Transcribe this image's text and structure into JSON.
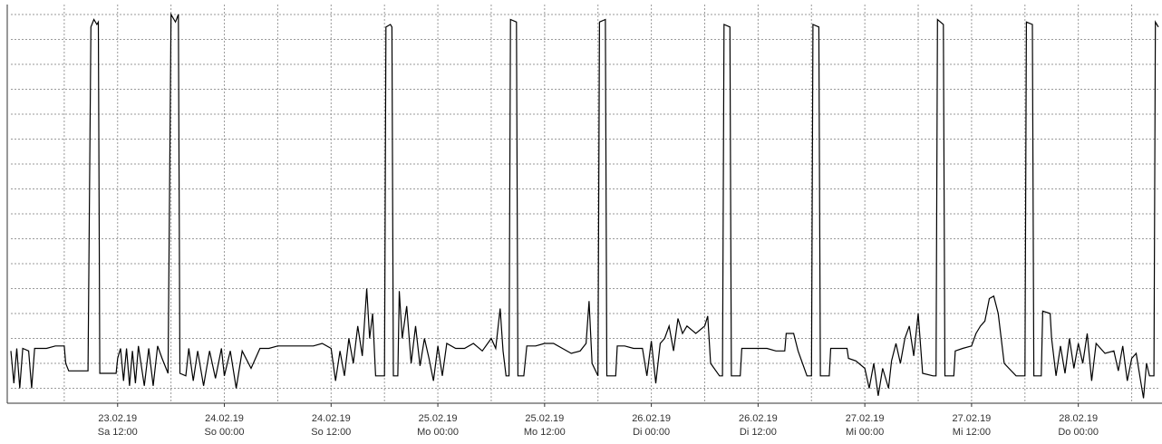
{
  "chart_data": {
    "type": "line",
    "xlim": [
      "2019-02-23T00:00",
      "2019-02-28T09:00"
    ],
    "xticks": [
      {
        "value": "2019-02-23T12:00",
        "label": [
          "23.02.19",
          "Sa 12:00"
        ]
      },
      {
        "value": "2019-02-24T00:00",
        "label": [
          "24.02.19",
          "So 00:00"
        ]
      },
      {
        "value": "2019-02-24T12:00",
        "label": [
          "24.02.19",
          "So 12:00"
        ]
      },
      {
        "value": "2019-02-25T00:00",
        "label": [
          "25.02.19",
          "Mo 00:00"
        ]
      },
      {
        "value": "2019-02-25T12:00",
        "label": [
          "25.02.19",
          "Mo 12:00"
        ]
      },
      {
        "value": "2019-02-26T00:00",
        "label": [
          "26.02.19",
          "Di 00:00"
        ]
      },
      {
        "value": "2019-02-26T12:00",
        "label": [
          "26.02.19",
          "Di 12:00"
        ]
      },
      {
        "value": "2019-02-27T00:00",
        "label": [
          "27.02.19",
          "Mi 00:00"
        ]
      },
      {
        "value": "2019-02-27T12:00",
        "label": [
          "27.02.19",
          "Mi 12:00"
        ]
      },
      {
        "value": "2019-02-28T00:00",
        "label": [
          "28.02.19",
          "Do 00:00"
        ]
      }
    ],
    "ylim": [
      -0.6,
      15.4
    ],
    "yticks": [
      0,
      1,
      2,
      3,
      4,
      5,
      6,
      7,
      8,
      9,
      10,
      11,
      12,
      13,
      14,
      15
    ],
    "grid": true,
    "x": [
      "2019-02-23T00:00",
      "2019-02-23T00:20",
      "2019-02-23T00:40",
      "2019-02-23T01:00",
      "2019-02-23T01:20",
      "2019-02-23T02:00",
      "2019-02-23T02:20",
      "2019-02-23T02:40",
      "2019-02-23T04:00",
      "2019-02-23T05:00",
      "2019-02-23T06:00",
      "2019-02-23T06:10",
      "2019-02-23T06:30",
      "2019-02-23T08:40",
      "2019-02-23T09:00",
      "2019-02-23T09:20",
      "2019-02-23T09:40",
      "2019-02-23T09:50",
      "2019-02-23T10:00",
      "2019-02-23T11:50",
      "2019-02-23T12:00",
      "2019-02-23T12:20",
      "2019-02-23T12:40",
      "2019-02-23T13:00",
      "2019-02-23T13:20",
      "2019-02-23T13:40",
      "2019-02-23T14:00",
      "2019-02-23T14:20",
      "2019-02-23T15:00",
      "2019-02-23T15:30",
      "2019-02-23T16:00",
      "2019-02-23T16:30",
      "2019-02-23T17:00",
      "2019-02-23T17:40",
      "2019-02-23T18:00",
      "2019-02-23T18:30",
      "2019-02-23T18:50",
      "2019-02-23T19:00",
      "2019-02-23T19:40",
      "2019-02-23T20:00",
      "2019-02-23T20:30",
      "2019-02-23T21:00",
      "2019-02-23T21:40",
      "2019-02-23T22:20",
      "2019-02-23T23:00",
      "2019-02-23T23:40",
      "2019-02-24T00:00",
      "2019-02-24T00:40",
      "2019-02-24T01:20",
      "2019-02-24T02:00",
      "2019-02-24T03:00",
      "2019-02-24T04:00",
      "2019-02-24T05:00",
      "2019-02-24T06:00",
      "2019-02-24T08:00",
      "2019-02-24T10:00",
      "2019-02-24T11:00",
      "2019-02-24T12:00",
      "2019-02-24T12:30",
      "2019-02-24T13:00",
      "2019-02-24T13:30",
      "2019-02-24T14:00",
      "2019-02-24T14:30",
      "2019-02-24T15:00",
      "2019-02-24T15:30",
      "2019-02-24T16:00",
      "2019-02-24T16:20",
      "2019-02-24T16:40",
      "2019-02-24T17:00",
      "2019-02-24T18:00",
      "2019-02-24T18:10",
      "2019-02-24T18:40",
      "2019-02-24T18:50",
      "2019-02-24T19:00",
      "2019-02-24T19:30",
      "2019-02-24T19:40",
      "2019-02-24T20:00",
      "2019-02-24T20:30",
      "2019-02-24T21:00",
      "2019-02-24T21:30",
      "2019-02-24T22:00",
      "2019-02-24T22:30",
      "2019-02-24T23:00",
      "2019-02-24T23:30",
      "2019-02-25T00:00",
      "2019-02-25T00:30",
      "2019-02-25T01:00",
      "2019-02-25T02:00",
      "2019-02-25T03:00",
      "2019-02-25T04:00",
      "2019-02-25T05:00",
      "2019-02-25T06:00",
      "2019-02-25T06:30",
      "2019-02-25T07:00",
      "2019-02-25T07:20",
      "2019-02-25T07:40",
      "2019-02-25T08:00",
      "2019-02-25T08:10",
      "2019-02-25T08:50",
      "2019-02-25T09:00",
      "2019-02-25T09:40",
      "2019-02-25T10:00",
      "2019-02-25T11:00",
      "2019-02-25T12:00",
      "2019-02-25T13:00",
      "2019-02-25T14:00",
      "2019-02-25T15:00",
      "2019-02-25T16:00",
      "2019-02-25T16:40",
      "2019-02-25T17:00",
      "2019-02-25T17:20",
      "2019-02-25T18:00",
      "2019-02-25T18:10",
      "2019-02-25T18:50",
      "2019-02-25T19:00",
      "2019-02-25T20:00",
      "2019-02-25T20:10",
      "2019-02-25T21:00",
      "2019-02-25T22:00",
      "2019-02-25T23:00",
      "2019-02-25T23:30",
      "2019-02-26T00:00",
      "2019-02-26T00:30",
      "2019-02-26T01:00",
      "2019-02-26T01:30",
      "2019-02-26T02:00",
      "2019-02-26T02:30",
      "2019-02-26T03:00",
      "2019-02-26T03:30",
      "2019-02-26T04:00",
      "2019-02-26T05:00",
      "2019-02-26T06:00",
      "2019-02-26T06:20",
      "2019-02-26T06:40",
      "2019-02-26T07:40",
      "2019-02-26T08:00",
      "2019-02-26T08:10",
      "2019-02-26T08:50",
      "2019-02-26T09:00",
      "2019-02-26T10:00",
      "2019-02-26T10:10",
      "2019-02-26T12:00",
      "2019-02-26T13:00",
      "2019-02-26T14:00",
      "2019-02-26T15:00",
      "2019-02-26T15:10",
      "2019-02-26T16:00",
      "2019-02-26T16:30",
      "2019-02-26T17:30",
      "2019-02-26T18:00",
      "2019-02-26T18:10",
      "2019-02-26T18:50",
      "2019-02-26T19:00",
      "2019-02-26T20:00",
      "2019-02-26T20:10",
      "2019-02-26T22:00",
      "2019-02-26T22:10",
      "2019-02-26T23:00",
      "2019-02-27T00:00",
      "2019-02-27T00:30",
      "2019-02-27T01:00",
      "2019-02-27T01:30",
      "2019-02-27T02:00",
      "2019-02-27T02:40",
      "2019-02-27T03:00",
      "2019-02-27T03:30",
      "2019-02-27T04:00",
      "2019-02-27T04:30",
      "2019-02-27T05:00",
      "2019-02-27T05:30",
      "2019-02-27T06:00",
      "2019-02-27T06:30",
      "2019-02-27T07:40",
      "2019-02-27T08:00",
      "2019-02-27T08:10",
      "2019-02-27T08:50",
      "2019-02-27T09:00",
      "2019-02-27T10:00",
      "2019-02-27T10:10",
      "2019-02-27T11:00",
      "2019-02-27T12:00",
      "2019-02-27T12:30",
      "2019-02-27T13:00",
      "2019-02-27T13:30",
      "2019-02-27T14:00",
      "2019-02-27T14:30",
      "2019-02-27T15:00",
      "2019-02-27T15:20",
      "2019-02-27T15:40",
      "2019-02-27T17:00",
      "2019-02-27T18:00",
      "2019-02-27T18:10",
      "2019-02-27T18:50",
      "2019-02-27T19:00",
      "2019-02-27T19:50",
      "2019-02-27T20:00",
      "2019-02-27T20:50",
      "2019-02-27T21:00",
      "2019-02-27T21:30",
      "2019-02-27T22:00",
      "2019-02-27T22:30",
      "2019-02-27T23:00",
      "2019-02-27T23:30",
      "2019-02-28T00:00",
      "2019-02-28T00:30",
      "2019-02-28T01:00",
      "2019-02-28T01:30",
      "2019-02-28T02:00",
      "2019-02-28T03:00",
      "2019-02-28T04:00",
      "2019-02-28T04:30",
      "2019-02-28T05:00",
      "2019-02-28T05:30",
      "2019-02-28T06:00",
      "2019-02-28T06:30",
      "2019-02-28T07:00",
      "2019-02-28T07:20",
      "2019-02-28T07:40",
      "2019-02-28T08:00",
      "2019-02-28T08:30",
      "2019-02-28T08:40",
      "2019-02-28T09:00"
    ],
    "series": [
      {
        "color": "#000000",
        "values": [
          1.5,
          0.2,
          1.6,
          0.0,
          1.6,
          1.5,
          0.0,
          1.6,
          1.6,
          1.7,
          1.7,
          1.0,
          0.7,
          0.7,
          14.5,
          14.8,
          14.6,
          14.7,
          0.6,
          0.6,
          1.2,
          1.6,
          0.3,
          1.6,
          0.1,
          1.5,
          0.2,
          1.7,
          0.1,
          1.6,
          0.1,
          1.7,
          1.2,
          0.6,
          15.0,
          14.7,
          15.0,
          0.6,
          0.5,
          1.6,
          0.3,
          1.5,
          0.1,
          1.5,
          0.4,
          1.6,
          0.5,
          1.5,
          0.0,
          1.5,
          0.8,
          1.6,
          1.6,
          1.7,
          1.7,
          1.7,
          1.8,
          1.6,
          0.3,
          1.5,
          0.5,
          2.0,
          1.0,
          2.5,
          1.3,
          4.0,
          2.0,
          3.0,
          0.5,
          0.5,
          14.5,
          14.6,
          14.5,
          0.5,
          0.5,
          3.9,
          2.0,
          3.3,
          1.0,
          2.5,
          0.9,
          2.0,
          1.2,
          0.3,
          1.7,
          0.5,
          1.8,
          1.6,
          1.6,
          1.8,
          1.5,
          2.0,
          1.6,
          3.2,
          1.5,
          0.5,
          0.5,
          14.8,
          14.7,
          0.5,
          0.5,
          1.7,
          1.7,
          1.8,
          1.8,
          1.6,
          1.4,
          1.5,
          1.8,
          3.5,
          1.0,
          0.5,
          14.7,
          14.8,
          0.5,
          0.5,
          1.7,
          1.7,
          1.6,
          1.6,
          0.5,
          1.9,
          0.2,
          1.8,
          2.0,
          2.5,
          1.5,
          2.8,
          2.2,
          2.5,
          2.2,
          2.5,
          2.9,
          1.0,
          0.5,
          0.5,
          14.6,
          14.5,
          0.5,
          0.5,
          1.6,
          1.6,
          1.6,
          1.5,
          1.5,
          2.2,
          2.2,
          1.5,
          0.5,
          0.5,
          14.6,
          14.5,
          0.5,
          0.5,
          1.6,
          1.6,
          1.2,
          1.1,
          0.8,
          0.0,
          1.0,
          -0.3,
          0.8,
          0.0,
          1.1,
          1.8,
          1.0,
          2.0,
          2.5,
          1.3,
          3.0,
          0.6,
          0.5,
          0.5,
          14.8,
          14.6,
          0.5,
          0.5,
          1.5,
          1.6,
          1.7,
          2.2,
          2.5,
          2.7,
          3.6,
          3.7,
          3.0,
          2.0,
          1.0,
          0.5,
          0.5,
          14.7,
          14.6,
          0.5,
          0.5,
          3.1,
          3.0,
          2.0,
          0.5,
          1.7,
          0.6,
          2.0,
          0.8,
          1.8,
          1.0,
          2.2,
          0.3,
          1.8,
          1.4,
          1.5,
          0.7,
          1.7,
          0.3,
          1.2,
          1.4,
          0.3,
          -0.4,
          1.0,
          0.5,
          0.5,
          14.7,
          14.5
        ]
      }
    ]
  }
}
